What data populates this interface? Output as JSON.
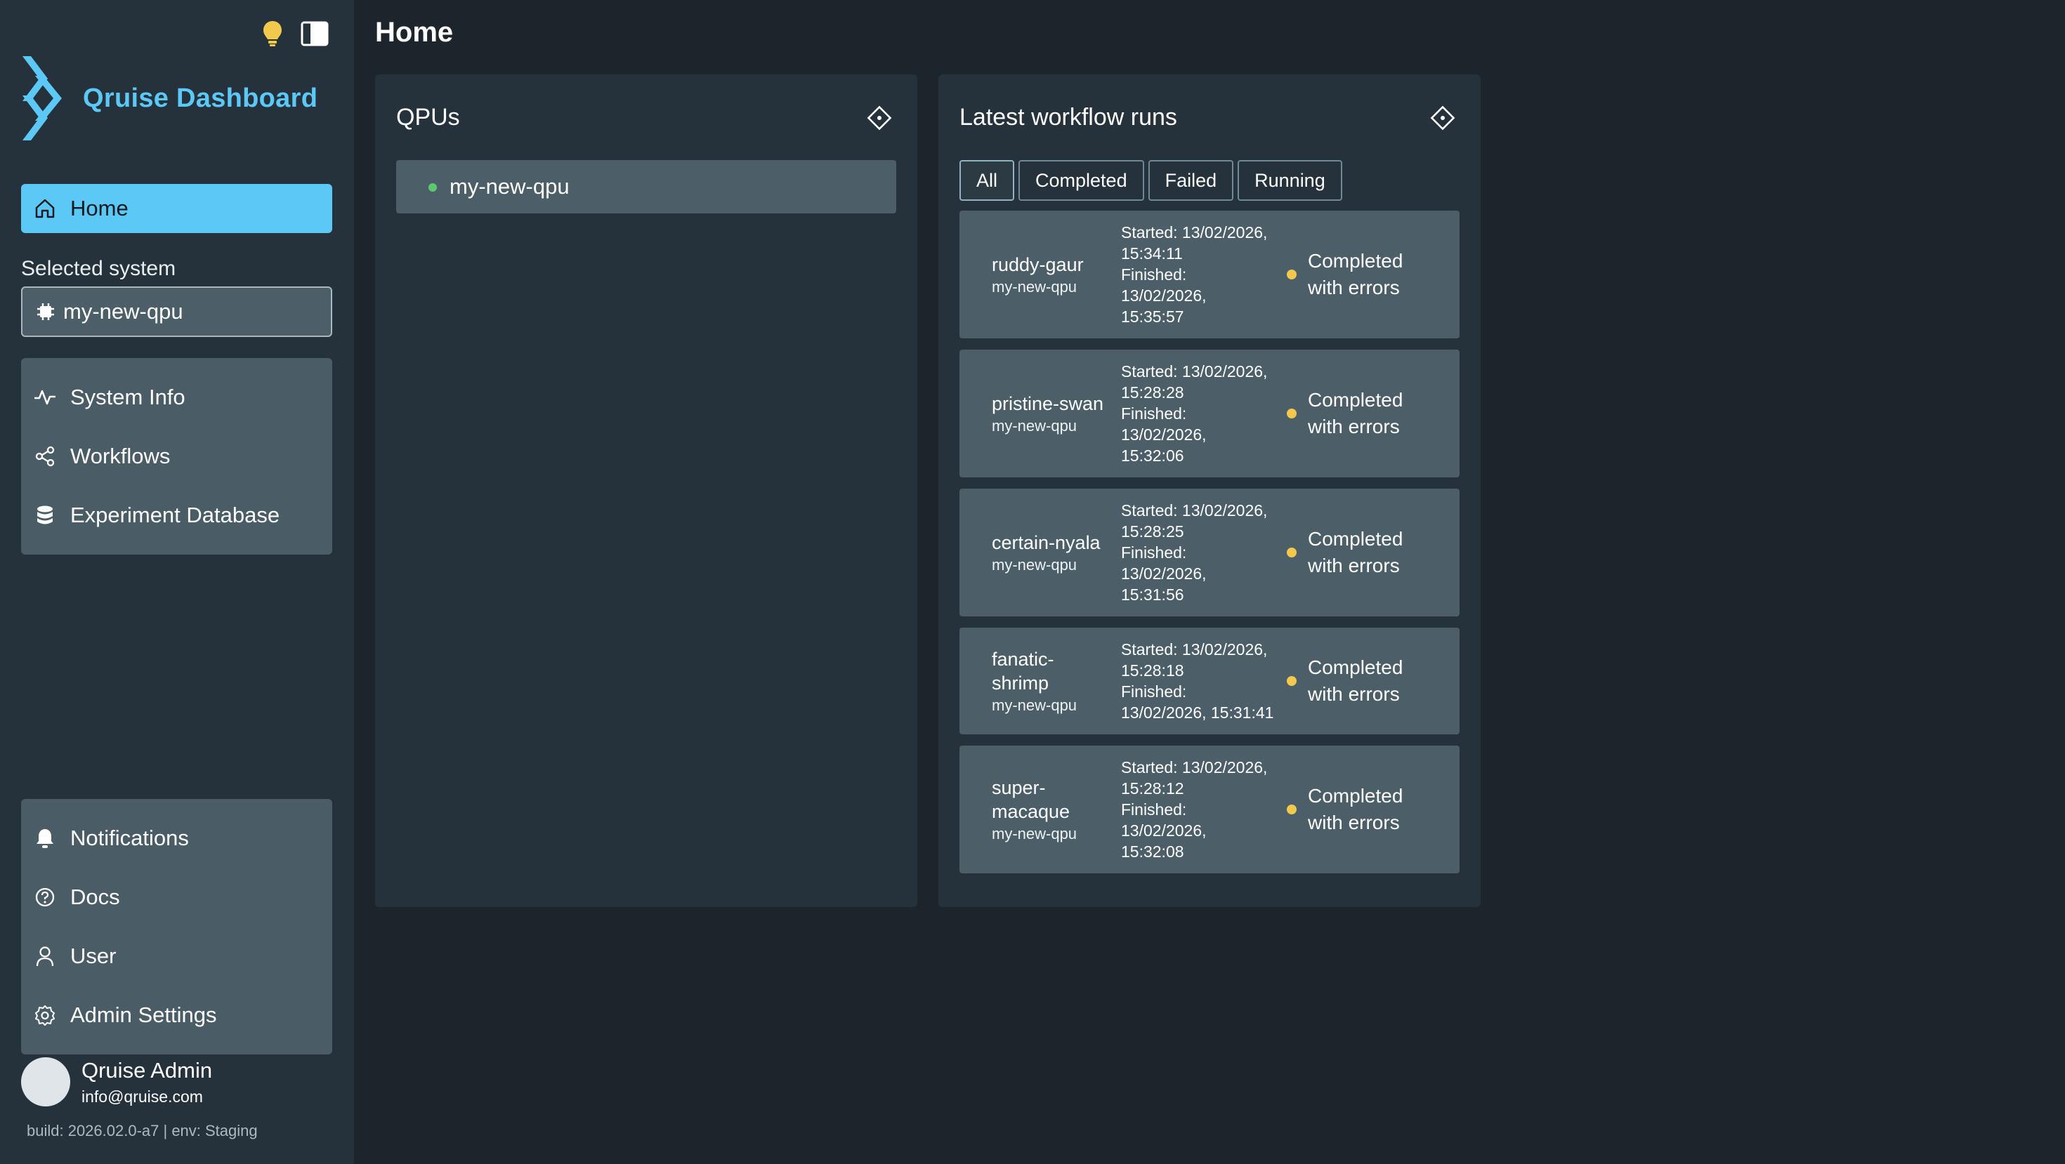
{
  "app": {
    "title": "Qruise Dashboard",
    "accent_color": "#5cc8f5"
  },
  "sidebar": {
    "top_icons": [
      "lightbulb-icon",
      "sidebar-toggle-icon"
    ],
    "home_label": "Home",
    "selected_system_label": "Selected system",
    "selected_system_value": "my-new-qpu",
    "main_items": [
      {
        "label": "System Info",
        "icon": "activity-icon"
      },
      {
        "label": "Workflows",
        "icon": "workflow-icon"
      },
      {
        "label": "Experiment Database",
        "icon": "database-icon"
      }
    ],
    "bottom_items": [
      {
        "label": "Notifications",
        "icon": "bell-icon"
      },
      {
        "label": "Docs",
        "icon": "help-circle-icon"
      },
      {
        "label": "User",
        "icon": "user-icon"
      },
      {
        "label": "Admin Settings",
        "icon": "settings-icon"
      }
    ],
    "user": {
      "name": "Qruise Admin",
      "email": "info@qruise.com"
    },
    "build_info": "build: 2026.02.0-a7 | env: Staging"
  },
  "main": {
    "page_title": "Home",
    "qpus_card": {
      "title": "QPUs",
      "items": [
        {
          "name": "my-new-qpu",
          "status_color": "#5cc96e"
        }
      ]
    },
    "runs_card": {
      "title": "Latest workflow runs",
      "filters": [
        "All",
        "Completed",
        "Failed",
        "Running"
      ],
      "active_filter": "All",
      "runs": [
        {
          "name": "ruddy-gaur",
          "qpu": "my-new-qpu",
          "times": [
            "Started: 13/02/2026,",
            "15:34:11",
            "Finished:",
            "13/02/2026,",
            "15:35:57"
          ],
          "status": "Completed with errors",
          "status_color": "#f2c94c"
        },
        {
          "name": "pristine-swan",
          "qpu": "my-new-qpu",
          "times": [
            "Started: 13/02/2026,",
            "15:28:28",
            "Finished:",
            "13/02/2026,",
            "15:32:06"
          ],
          "status": "Completed with errors",
          "status_color": "#f2c94c"
        },
        {
          "name": "certain-nyala",
          "qpu": "my-new-qpu",
          "times": [
            "Started: 13/02/2026,",
            "15:28:25",
            "Finished:",
            "13/02/2026,",
            "15:31:56"
          ],
          "status": "Completed with errors",
          "status_color": "#f2c94c"
        },
        {
          "name": "fanatic-shrimp",
          "qpu": "my-new-qpu",
          "times": [
            "Started: 13/02/2026,",
            "15:28:18",
            "Finished:",
            "13/02/2026, 15:31:41"
          ],
          "status": "Completed with errors",
          "status_color": "#f2c94c"
        },
        {
          "name": "super-macaque",
          "qpu": "my-new-qpu",
          "times": [
            "Started: 13/02/2026,",
            "15:28:12",
            "Finished:",
            "13/02/2026,",
            "15:32:08"
          ],
          "status": "Completed with errors",
          "status_color": "#f2c94c"
        }
      ]
    }
  }
}
